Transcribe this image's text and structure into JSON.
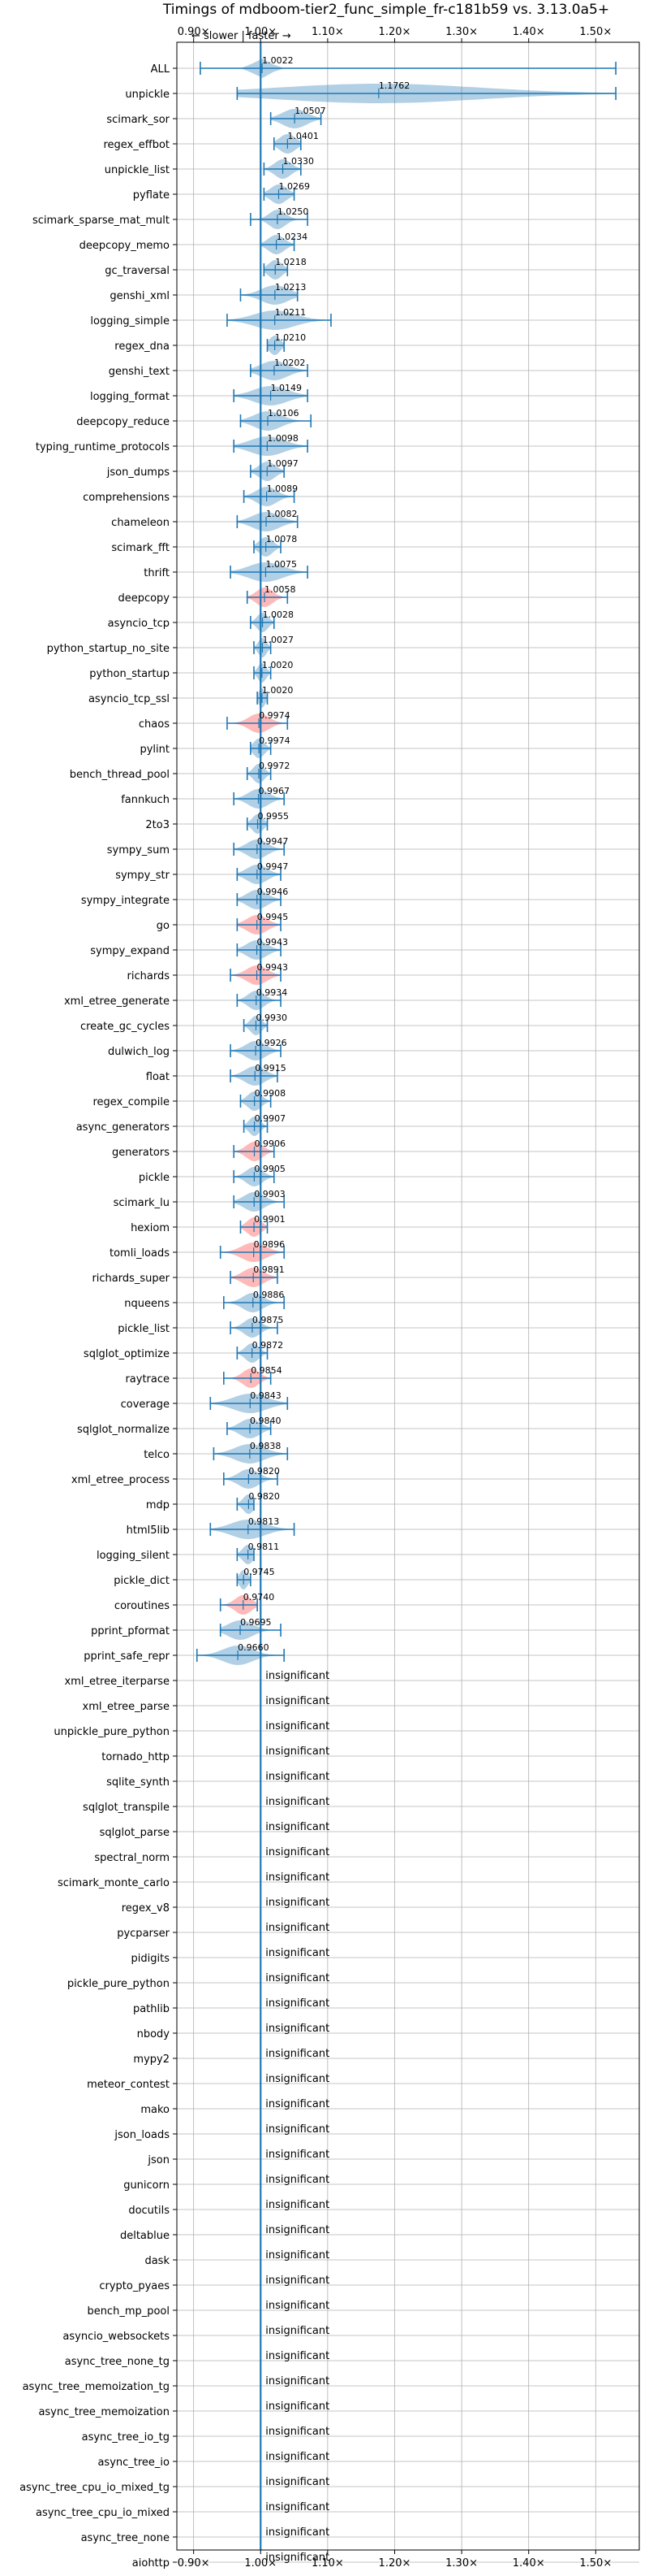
{
  "chart_data": {
    "type": "violin",
    "title": "Timings of mdboom-tier2_func_simple_fr-c181b59 vs. 3.13.0a5+",
    "direction_hint": "← slower | faster →",
    "xlim": [
      0.875,
      1.565
    ],
    "x_ticks": [
      0.9,
      1.0,
      1.1,
      1.2,
      1.3,
      1.4,
      1.5
    ],
    "x_tick_labels": [
      "0.90×",
      "1.00×",
      "1.10×",
      "1.20×",
      "1.30×",
      "1.40×",
      "1.50×"
    ],
    "grid": true,
    "reference_line": 1.0,
    "insignificant_label": "insignificant",
    "colors": {
      "faster": "#1f77b4",
      "slower": "#ff7f7f",
      "reference": "#1f77b4",
      "grid": "#b0b0b0"
    },
    "benchmarks": [
      {
        "name": "ALL",
        "mean": 1.0022,
        "label": "1.0022",
        "min": 0.91,
        "max": 1.53,
        "spread": 0.012,
        "slower": false
      },
      {
        "name": "unpickle",
        "mean": 1.1762,
        "label": "1.1762",
        "min": 0.965,
        "max": 1.53,
        "spread": 0.15,
        "slower": false
      },
      {
        "name": "scimark_sor",
        "mean": 1.0507,
        "label": "1.0507",
        "min": 1.015,
        "max": 1.09,
        "spread": 0.018,
        "slower": false
      },
      {
        "name": "regex_effbot",
        "mean": 1.0401,
        "label": "1.0401",
        "min": 1.02,
        "max": 1.06,
        "spread": 0.012,
        "slower": false
      },
      {
        "name": "unpickle_list",
        "mean": 1.033,
        "label": "1.0330",
        "min": 1.005,
        "max": 1.06,
        "spread": 0.012,
        "slower": false
      },
      {
        "name": "pyflate",
        "mean": 1.0269,
        "label": "1.0269",
        "min": 1.005,
        "max": 1.05,
        "spread": 0.012,
        "slower": false
      },
      {
        "name": "scimark_sparse_mat_mult",
        "mean": 1.025,
        "label": "1.0250",
        "min": 0.985,
        "max": 1.07,
        "spread": 0.012,
        "slower": false
      },
      {
        "name": "deepcopy_memo",
        "mean": 1.0234,
        "label": "1.0234",
        "min": 1.0,
        "max": 1.05,
        "spread": 0.012,
        "slower": false
      },
      {
        "name": "gc_traversal",
        "mean": 1.0218,
        "label": "1.0218",
        "min": 1.005,
        "max": 1.04,
        "spread": 0.01,
        "slower": false
      },
      {
        "name": "genshi_xml",
        "mean": 1.0213,
        "label": "1.0213",
        "min": 0.97,
        "max": 1.055,
        "spread": 0.02,
        "slower": false
      },
      {
        "name": "logging_simple",
        "mean": 1.0211,
        "label": "1.0211",
        "min": 0.95,
        "max": 1.105,
        "spread": 0.03,
        "slower": false
      },
      {
        "name": "regex_dna",
        "mean": 1.021,
        "label": "1.0210",
        "min": 1.01,
        "max": 1.035,
        "spread": 0.008,
        "slower": false
      },
      {
        "name": "genshi_text",
        "mean": 1.0202,
        "label": "1.0202",
        "min": 0.985,
        "max": 1.07,
        "spread": 0.02,
        "slower": false
      },
      {
        "name": "logging_format",
        "mean": 1.0149,
        "label": "1.0149",
        "min": 0.96,
        "max": 1.07,
        "spread": 0.025,
        "slower": false
      },
      {
        "name": "deepcopy_reduce",
        "mean": 1.0106,
        "label": "1.0106",
        "min": 0.97,
        "max": 1.075,
        "spread": 0.02,
        "slower": false
      },
      {
        "name": "typing_runtime_protocols",
        "mean": 1.0098,
        "label": "1.0098",
        "min": 0.96,
        "max": 1.07,
        "spread": 0.025,
        "slower": false
      },
      {
        "name": "json_dumps",
        "mean": 1.0097,
        "label": "1.0097",
        "min": 0.985,
        "max": 1.035,
        "spread": 0.012,
        "slower": false
      },
      {
        "name": "comprehensions",
        "mean": 1.0089,
        "label": "1.0089",
        "min": 0.975,
        "max": 1.05,
        "spread": 0.015,
        "slower": false
      },
      {
        "name": "chameleon",
        "mean": 1.0082,
        "label": "1.0082",
        "min": 0.965,
        "max": 1.055,
        "spread": 0.02,
        "slower": false
      },
      {
        "name": "scimark_fft",
        "mean": 1.0078,
        "label": "1.0078",
        "min": 0.99,
        "max": 1.03,
        "spread": 0.01,
        "slower": false
      },
      {
        "name": "thrift",
        "mean": 1.0075,
        "label": "1.0075",
        "min": 0.955,
        "max": 1.07,
        "spread": 0.025,
        "slower": false
      },
      {
        "name": "deepcopy",
        "mean": 1.0058,
        "label": "1.0058",
        "min": 0.98,
        "max": 1.04,
        "spread": 0.012,
        "slower": true
      },
      {
        "name": "asyncio_tcp",
        "mean": 1.0028,
        "label": "1.0028",
        "min": 0.985,
        "max": 1.02,
        "spread": 0.008,
        "slower": false
      },
      {
        "name": "python_startup_no_site",
        "mean": 1.0027,
        "label": "1.0027",
        "min": 0.99,
        "max": 1.015,
        "spread": 0.006,
        "slower": false
      },
      {
        "name": "python_startup",
        "mean": 1.002,
        "label": "1.0020",
        "min": 0.99,
        "max": 1.015,
        "spread": 0.006,
        "slower": false
      },
      {
        "name": "asyncio_tcp_ssl",
        "mean": 1.002,
        "label": "1.0020",
        "min": 0.995,
        "max": 1.01,
        "spread": 0.004,
        "slower": false
      },
      {
        "name": "chaos",
        "mean": 0.9974,
        "label": "0.9974",
        "min": 0.95,
        "max": 1.04,
        "spread": 0.015,
        "slower": true
      },
      {
        "name": "pylint",
        "mean": 0.9974,
        "label": "0.9974",
        "min": 0.985,
        "max": 1.015,
        "spread": 0.008,
        "slower": false
      },
      {
        "name": "bench_thread_pool",
        "mean": 0.9972,
        "label": "0.9972",
        "min": 0.98,
        "max": 1.015,
        "spread": 0.008,
        "slower": false
      },
      {
        "name": "fannkuch",
        "mean": 0.9967,
        "label": "0.9967",
        "min": 0.96,
        "max": 1.035,
        "spread": 0.015,
        "slower": false
      },
      {
        "name": "2to3",
        "mean": 0.9955,
        "label": "0.9955",
        "min": 0.98,
        "max": 1.01,
        "spread": 0.008,
        "slower": false
      },
      {
        "name": "sympy_sum",
        "mean": 0.9947,
        "label": "0.9947",
        "min": 0.96,
        "max": 1.035,
        "spread": 0.015,
        "slower": false
      },
      {
        "name": "sympy_str",
        "mean": 0.9947,
        "label": "0.9947",
        "min": 0.965,
        "max": 1.03,
        "spread": 0.015,
        "slower": false
      },
      {
        "name": "sympy_integrate",
        "mean": 0.9946,
        "label": "0.9946",
        "min": 0.965,
        "max": 1.03,
        "spread": 0.015,
        "slower": false
      },
      {
        "name": "go",
        "mean": 0.9945,
        "label": "0.9945",
        "min": 0.965,
        "max": 1.03,
        "spread": 0.015,
        "slower": true
      },
      {
        "name": "sympy_expand",
        "mean": 0.9943,
        "label": "0.9943",
        "min": 0.965,
        "max": 1.03,
        "spread": 0.015,
        "slower": false
      },
      {
        "name": "richards",
        "mean": 0.9943,
        "label": "0.9943",
        "min": 0.955,
        "max": 1.03,
        "spread": 0.015,
        "slower": true
      },
      {
        "name": "xml_etree_generate",
        "mean": 0.9934,
        "label": "0.9934",
        "min": 0.965,
        "max": 1.03,
        "spread": 0.012,
        "slower": false
      },
      {
        "name": "create_gc_cycles",
        "mean": 0.993,
        "label": "0.9930",
        "min": 0.975,
        "max": 1.01,
        "spread": 0.008,
        "slower": false
      },
      {
        "name": "dulwich_log",
        "mean": 0.9926,
        "label": "0.9926",
        "min": 0.955,
        "max": 1.03,
        "spread": 0.015,
        "slower": false
      },
      {
        "name": "float",
        "mean": 0.9915,
        "label": "0.9915",
        "min": 0.955,
        "max": 1.025,
        "spread": 0.015,
        "slower": false
      },
      {
        "name": "regex_compile",
        "mean": 0.9908,
        "label": "0.9908",
        "min": 0.97,
        "max": 1.015,
        "spread": 0.01,
        "slower": false
      },
      {
        "name": "async_generators",
        "mean": 0.9907,
        "label": "0.9907",
        "min": 0.975,
        "max": 1.01,
        "spread": 0.008,
        "slower": false
      },
      {
        "name": "generators",
        "mean": 0.9906,
        "label": "0.9906",
        "min": 0.96,
        "max": 1.02,
        "spread": 0.012,
        "slower": true
      },
      {
        "name": "pickle",
        "mean": 0.9905,
        "label": "0.9905",
        "min": 0.96,
        "max": 1.02,
        "spread": 0.012,
        "slower": false
      },
      {
        "name": "scimark_lu",
        "mean": 0.9903,
        "label": "0.9903",
        "min": 0.96,
        "max": 1.035,
        "spread": 0.015,
        "slower": false
      },
      {
        "name": "hexiom",
        "mean": 0.9901,
        "label": "0.9901",
        "min": 0.97,
        "max": 1.01,
        "spread": 0.01,
        "slower": true
      },
      {
        "name": "tomli_loads",
        "mean": 0.9896,
        "label": "0.9896",
        "min": 0.94,
        "max": 1.035,
        "spread": 0.018,
        "slower": true
      },
      {
        "name": "richards_super",
        "mean": 0.9891,
        "label": "0.9891",
        "min": 0.955,
        "max": 1.025,
        "spread": 0.015,
        "slower": true
      },
      {
        "name": "nqueens",
        "mean": 0.9886,
        "label": "0.9886",
        "min": 0.945,
        "max": 1.035,
        "spread": 0.015,
        "slower": false
      },
      {
        "name": "pickle_list",
        "mean": 0.9875,
        "label": "0.9875",
        "min": 0.955,
        "max": 1.025,
        "spread": 0.012,
        "slower": false
      },
      {
        "name": "sqlglot_optimize",
        "mean": 0.9872,
        "label": "0.9872",
        "min": 0.965,
        "max": 1.01,
        "spread": 0.01,
        "slower": false
      },
      {
        "name": "raytrace",
        "mean": 0.9854,
        "label": "0.9854",
        "min": 0.945,
        "max": 1.015,
        "spread": 0.012,
        "slower": true
      },
      {
        "name": "coverage",
        "mean": 0.9843,
        "label": "0.9843",
        "min": 0.925,
        "max": 1.04,
        "spread": 0.025,
        "slower": false
      },
      {
        "name": "sqlglot_normalize",
        "mean": 0.984,
        "label": "0.9840",
        "min": 0.95,
        "max": 1.015,
        "spread": 0.015,
        "slower": false
      },
      {
        "name": "telco",
        "mean": 0.9838,
        "label": "0.9838",
        "min": 0.93,
        "max": 1.04,
        "spread": 0.022,
        "slower": false
      },
      {
        "name": "xml_etree_process",
        "mean": 0.982,
        "label": "0.9820",
        "min": 0.945,
        "max": 1.025,
        "spread": 0.015,
        "slower": false
      },
      {
        "name": "mdp",
        "mean": 0.982,
        "label": "0.9820",
        "min": 0.965,
        "max": 0.99,
        "spread": 0.008,
        "slower": false
      },
      {
        "name": "html5lib",
        "mean": 0.9813,
        "label": "0.9813",
        "min": 0.925,
        "max": 1.05,
        "spread": 0.025,
        "slower": false
      },
      {
        "name": "logging_silent",
        "mean": 0.9811,
        "label": "0.9811",
        "min": 0.965,
        "max": 0.99,
        "spread": 0.008,
        "slower": false
      },
      {
        "name": "pickle_dict",
        "mean": 0.9745,
        "label": "0.9745",
        "min": 0.965,
        "max": 0.985,
        "spread": 0.006,
        "slower": false
      },
      {
        "name": "coroutines",
        "mean": 0.974,
        "label": "0.9740",
        "min": 0.94,
        "max": 0.995,
        "spread": 0.012,
        "slower": true
      },
      {
        "name": "pprint_pformat",
        "mean": 0.9695,
        "label": "0.9695",
        "min": 0.94,
        "max": 1.03,
        "spread": 0.018,
        "slower": false
      },
      {
        "name": "pprint_safe_repr",
        "mean": 0.966,
        "label": "0.9660",
        "min": 0.905,
        "max": 1.035,
        "spread": 0.022,
        "slower": false
      }
    ],
    "insignificant": [
      "xml_etree_iterparse",
      "xml_etree_parse",
      "unpickle_pure_python",
      "tornado_http",
      "sqlite_synth",
      "sqlglot_transpile",
      "sqlglot_parse",
      "spectral_norm",
      "scimark_monte_carlo",
      "regex_v8",
      "pycparser",
      "pidigits",
      "pickle_pure_python",
      "pathlib",
      "nbody",
      "mypy2",
      "meteor_contest",
      "mako",
      "json_loads",
      "json",
      "gunicorn",
      "docutils",
      "deltablue",
      "dask",
      "crypto_pyaes",
      "bench_mp_pool",
      "asyncio_websockets",
      "async_tree_none_tg",
      "async_tree_memoization_tg",
      "async_tree_memoization",
      "async_tree_io_tg",
      "async_tree_io",
      "async_tree_cpu_io_mixed_tg",
      "async_tree_cpu_io_mixed",
      "async_tree_none",
      "aiohttp"
    ]
  }
}
